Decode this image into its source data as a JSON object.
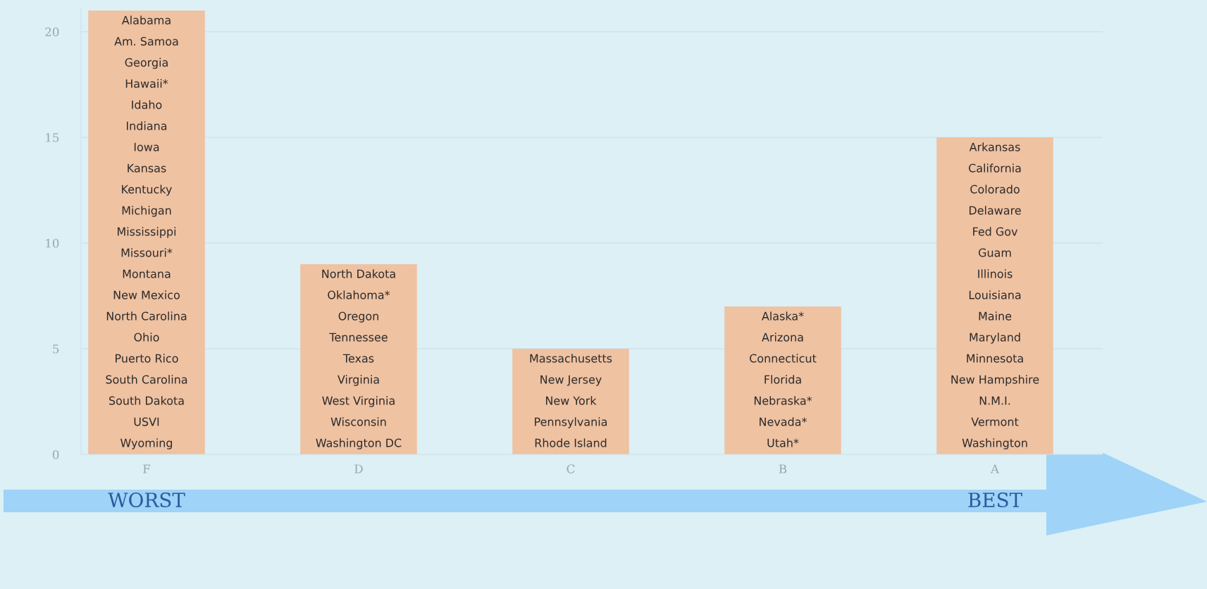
{
  "chart_data": {
    "type": "bar",
    "categories": [
      "F",
      "D",
      "C",
      "B",
      "A"
    ],
    "values": [
      21,
      9,
      5,
      7,
      15
    ],
    "color": "#efc2a2",
    "ylim": [
      0,
      21.1
    ],
    "yticks": [
      0,
      5,
      10,
      15,
      20
    ],
    "grid": "y",
    "legend": false,
    "annotations": [
      "Alabama",
      "Am. Samoa",
      "Georgia",
      "Hawaii*",
      "Idaho",
      "Indiana",
      "Iowa",
      "Kansas",
      "Kentucky",
      "Michigan",
      "Mississippi",
      "Missouri*",
      "Montana",
      "New Mexico",
      "North Carolina",
      "Ohio",
      "Puerto Rico",
      "South Carolina",
      "South Dakota",
      "USVI",
      "Wyoming",
      "North Dakota",
      "Oklahoma*",
      "Oregon",
      "Tennessee",
      "Texas",
      "Virginia",
      "West Virginia",
      "Wisconsin",
      "Washington DC",
      "Massachusetts",
      "New Jersey",
      "New York",
      "Pennsylvania",
      "Rhode Island",
      "Alaska*",
      "Arizona",
      "Connecticut",
      "Florida",
      "Nebraska*",
      "Nevada*",
      "Utah*",
      "Arkansas",
      "California",
      "Colorado",
      "Delaware",
      "Fed Gov",
      "Guam",
      "Illinois",
      "Louisiana",
      "Maine",
      "Maryland",
      "Minnesota",
      "New Hampshire",
      "N.M.I.",
      "Vermont",
      "Washington",
      "WORST",
      "BEST"
    ]
  }
}
